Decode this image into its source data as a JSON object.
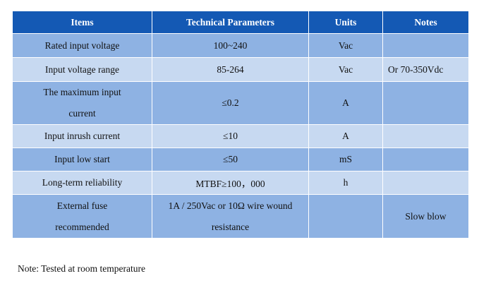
{
  "table": {
    "headers": [
      "Items",
      "Technical Parameters",
      "Units",
      "Notes"
    ],
    "rows": [
      {
        "item": "Rated input voltage",
        "param": "100~240",
        "unit": "Vac",
        "note": ""
      },
      {
        "item": "Input voltage range",
        "param": "85-264",
        "unit": "Vac",
        "note": "Or 70-350Vdc"
      },
      {
        "item_line1": "The maximum input",
        "item_line2": "current",
        "param": "≤0.2",
        "unit": "A",
        "note": ""
      },
      {
        "item": "Input inrush current",
        "param": "≤10",
        "unit": "A",
        "note": ""
      },
      {
        "item": "Input low start",
        "param": "≤50",
        "unit": "mS",
        "note": ""
      },
      {
        "item": "Long-term reliability",
        "param": "MTBF≥100，000",
        "unit": "h",
        "note": ""
      },
      {
        "item_line1": "External fuse",
        "item_line2": "recommended",
        "param_line1": "1A / 250Vac or 10Ω wire wound",
        "param_line2": "resistance",
        "unit": "",
        "note": "Slow blow"
      }
    ]
  },
  "footnote": "Note: Tested at room temperature",
  "colors": {
    "header_bg": "#1459b4",
    "row_dark": "#8eb2e3",
    "row_light": "#c7d9f1"
  }
}
